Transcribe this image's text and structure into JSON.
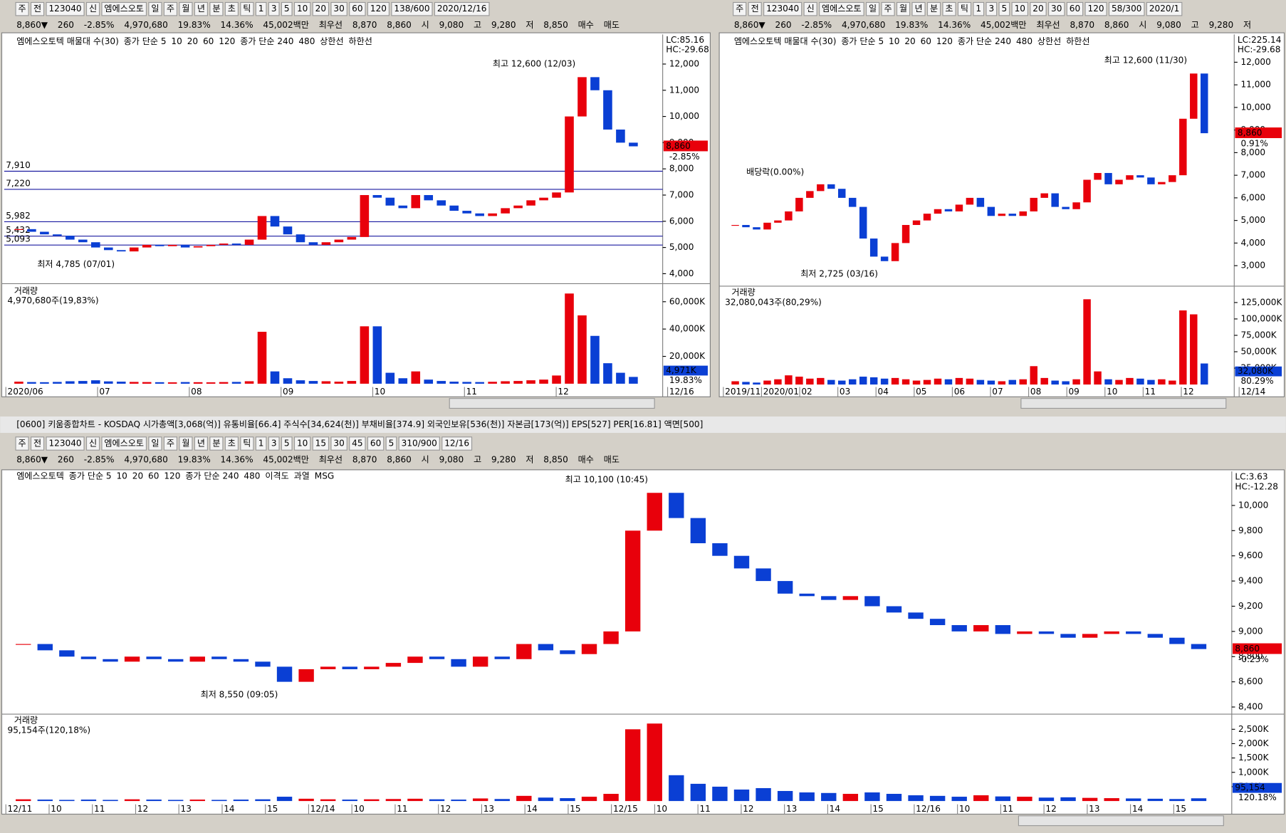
{
  "quote": [
    "8,860▼",
    "260",
    "-2.85%",
    "4,970,680",
    "19.83%",
    "14.36%",
    "45,002백만",
    "최우선",
    "8,870",
    "8,860",
    "시",
    "9,080",
    "고",
    "9,280",
    "저",
    "8,850",
    "매수",
    "매도"
  ],
  "window_title": "[0600] 키움종합차트 - KOSDAQ 시가총액[3,068(억)] 유통비율[66.4] 주식수[34,624(천)] 부채비율[374.9] 외국인보유[536(천)] 자본금[173(억)] EPS[527] PER[16.81] 액면[500]",
  "panels": [
    {
      "toolbar": [
        "주",
        "전",
        "123040",
        "신",
        "엠에스오토",
        "일",
        "주",
        "월",
        "년",
        "분",
        "초",
        "틱",
        "1",
        "3",
        "5",
        "10",
        "20",
        "30",
        "60",
        "120",
        "138/600",
        "2020/12/16"
      ],
      "legend": [
        {
          "label": "엠에스오토텍 매물대 수(30)",
          "color": "#000000"
        },
        {
          "label": "종가 단순 5",
          "color": "#d0208c"
        },
        {
          "label": "10",
          "color": "#1030d0"
        },
        {
          "label": "20",
          "color": "#e0a000"
        },
        {
          "label": "60",
          "color": "#20a020"
        },
        {
          "label": "120",
          "color": "#888888"
        },
        {
          "label": "종가 단순 240",
          "color": "#8b0000"
        },
        {
          "label": "480",
          "color": "#00b0d0"
        },
        {
          "label": "상한선",
          "color": "#000000"
        },
        {
          "label": "하한선",
          "color": "#000000"
        }
      ],
      "ylim": [
        3650,
        13130
      ],
      "yticks": [
        {
          "value": 4000,
          "label": "4,000"
        },
        {
          "value": 5000,
          "label": "5,000"
        },
        {
          "value": 6000,
          "label": "6,000"
        },
        {
          "value": 7000,
          "label": "7,000"
        },
        {
          "value": 8000,
          "label": "8,000"
        },
        {
          "value": 9000,
          "label": "9,000"
        },
        {
          "value": 10000,
          "label": "10,000"
        },
        {
          "value": 11000,
          "label": "11,000"
        },
        {
          "value": 12000,
          "label": "12,000"
        }
      ],
      "levels": [
        {
          "value": 7910,
          "label": "7,910"
        },
        {
          "value": 7220,
          "label": "7,220"
        },
        {
          "value": 5982,
          "label": "5,982"
        },
        {
          "value": 5432,
          "label": "5,432"
        },
        {
          "value": 5093,
          "label": "5,093"
        }
      ],
      "high_label": "최고 12,600 (12/03)",
      "low_label": "최저 4,785 (07/01)",
      "lc": "LC:85.16",
      "hc": "HC:-29.68",
      "price_box": "8,860",
      "change_box": "-2.85%",
      "close": [
        5700,
        5600,
        5500,
        5450,
        5300,
        5200,
        5000,
        4900,
        4850,
        5000,
        5100,
        5050,
        5100,
        5000,
        5050,
        5100,
        5150,
        5100,
        5300,
        6200,
        5800,
        5500,
        5200,
        5100,
        5200,
        5300,
        5400,
        7000,
        6900,
        6600,
        6500,
        7000,
        6800,
        6600,
        6400,
        6300,
        6200,
        6300,
        6500,
        6600,
        6800,
        6900,
        7100,
        10000,
        11500,
        11000,
        9500,
        9000,
        8860
      ],
      "volume_title": "거래량",
      "volume_text": "4,970,680주(19,83%)",
      "vol_box": "4,971K",
      "vol_pct": "19.83%",
      "vlim": [
        0,
        72000
      ],
      "vticks": [
        {
          "value": 20000,
          "label": "20,000K"
        },
        {
          "value": 40000,
          "label": "40,000K"
        },
        {
          "value": 60000,
          "label": "60,000K"
        }
      ],
      "volume": [
        1500,
        1200,
        1100,
        1300,
        1800,
        2000,
        2500,
        1700,
        1500,
        1300,
        1200,
        1100,
        1000,
        1200,
        1100,
        1000,
        1200,
        1300,
        1800,
        38000,
        9000,
        4000,
        2500,
        2000,
        1800,
        1500,
        2000,
        42000,
        42000,
        8000,
        4000,
        9000,
        3000,
        2000,
        1500,
        1300,
        1200,
        1400,
        1800,
        2000,
        2500,
        3000,
        6000,
        66000,
        50000,
        35000,
        15000,
        8000,
        4971
      ],
      "xlabels": [
        "2020/06",
        "07",
        "08",
        "09",
        "10",
        "11",
        "12",
        "12/16"
      ]
    },
    {
      "toolbar": [
        "주",
        "전",
        "123040",
        "신",
        "엠에스오토",
        "일",
        "주",
        "월",
        "년",
        "분",
        "초",
        "틱",
        "1",
        "3",
        "5",
        "10",
        "20",
        "30",
        "60",
        "120",
        "58/300",
        "2020/1"
      ],
      "legend": [
        {
          "label": "엠에스오토텍 매물대 수(30)",
          "color": "#000000"
        },
        {
          "label": "종가 단순 5",
          "color": "#d0208c"
        },
        {
          "label": "10",
          "color": "#1030d0"
        },
        {
          "label": "20",
          "color": "#e0a000"
        },
        {
          "label": "60",
          "color": "#20a020"
        },
        {
          "label": "120",
          "color": "#888888"
        },
        {
          "label": "종가 단순 240",
          "color": "#8b0000"
        },
        {
          "label": "480",
          "color": "#00b0d0"
        },
        {
          "label": "상한선",
          "color": "#000000"
        },
        {
          "label": "하한선",
          "color": "#000000"
        }
      ],
      "ylim": [
        2130,
        13230
      ],
      "yticks": [
        {
          "value": 3000,
          "label": "3,000"
        },
        {
          "value": 4000,
          "label": "4,000"
        },
        {
          "value": 5000,
          "label": "5,000"
        },
        {
          "value": 6000,
          "label": "6,000"
        },
        {
          "value": 7000,
          "label": "7,000"
        },
        {
          "value": 8000,
          "label": "8,000"
        },
        {
          "value": 9000,
          "label": "9,000"
        },
        {
          "value": 10000,
          "label": "10,000"
        },
        {
          "value": 11000,
          "label": "11,000"
        },
        {
          "value": 12000,
          "label": "12,000"
        }
      ],
      "levels": [],
      "high_label": "최고 12,600 (11/30)",
      "low_label": "최저 2,725 (03/16)",
      "dividend_label": "배당락(0.00%)",
      "lc": "LC:225.14",
      "hc": "HC:-29.68",
      "price_box": "8,860",
      "change_box": "0.91%",
      "close": [
        4800,
        4700,
        4600,
        4900,
        5000,
        5400,
        6000,
        6300,
        6600,
        6400,
        6000,
        5600,
        4200,
        3400,
        3200,
        4000,
        4800,
        5000,
        5300,
        5500,
        5400,
        5700,
        6000,
        5600,
        5200,
        5300,
        5200,
        5400,
        6000,
        6200,
        5600,
        5500,
        5800,
        6800,
        7100,
        6600,
        6800,
        7000,
        6900,
        6600,
        6700,
        7000,
        9500,
        11500,
        8860
      ],
      "volume_title": "거래량",
      "volume_text": "32,080,043주(80,29%)",
      "vol_box": "32,080K",
      "vol_pct": "80.29%",
      "vlim": [
        0,
        148750
      ],
      "vticks": [
        {
          "value": 25000,
          "label": "25,000K"
        },
        {
          "value": 50000,
          "label": "50,000K"
        },
        {
          "value": 75000,
          "label": "75,000K"
        },
        {
          "value": 100000,
          "label": "100,000K"
        },
        {
          "value": 125000,
          "label": "125,000K"
        }
      ],
      "volume": [
        5000,
        4000,
        3000,
        6000,
        8000,
        14000,
        12000,
        9000,
        10000,
        7000,
        6000,
        8000,
        12000,
        11000,
        9000,
        10000,
        8000,
        6000,
        7000,
        9000,
        8000,
        10000,
        9000,
        7000,
        6000,
        5000,
        7000,
        8000,
        28000,
        10000,
        6000,
        5000,
        8000,
        130000,
        20000,
        8000,
        7000,
        10000,
        9000,
        7000,
        8000,
        6000,
        113000,
        107000,
        32080
      ],
      "xlabels": [
        "2019/11",
        "2020/01",
        "02",
        "03",
        "04",
        "05",
        "06",
        "07",
        "08",
        "09",
        "10",
        "11",
        "12",
        "12/14"
      ]
    },
    {
      "toolbar": [
        "주",
        "전",
        "123040",
        "신",
        "엠에스오토",
        "일",
        "주",
        "월",
        "년",
        "분",
        "초",
        "틱",
        "1",
        "3",
        "5",
        "10",
        "15",
        "30",
        "45",
        "60",
        "5",
        "310/900",
        "12/16"
      ],
      "legend": [
        {
          "label": "엠에스오토텍",
          "color": "#000000"
        },
        {
          "label": "종가 단순 5",
          "color": "#d0208c"
        },
        {
          "label": "10",
          "color": "#1030d0"
        },
        {
          "label": "20",
          "color": "#e0a000"
        },
        {
          "label": "60",
          "color": "#20a020"
        },
        {
          "label": "120",
          "color": "#000000"
        },
        {
          "label": "종가 단순 240",
          "color": "#8b0000"
        },
        {
          "label": "480",
          "color": "#00b0d0"
        },
        {
          "label": "이격도",
          "color": "#1030d0"
        },
        {
          "label": "과열",
          "color": "#8b0000"
        },
        {
          "label": "MSG",
          "color": "#000000"
        }
      ],
      "ylim": [
        8350,
        10270
      ],
      "yticks": [
        {
          "value": 8400,
          "label": "8,400"
        },
        {
          "value": 8600,
          "label": "8,600"
        },
        {
          "value": 8800,
          "label": "8,800"
        },
        {
          "value": 9000,
          "label": "9,000"
        },
        {
          "value": 9200,
          "label": "9,200"
        },
        {
          "value": 9400,
          "label": "9,400"
        },
        {
          "value": 9600,
          "label": "9,600"
        },
        {
          "value": 9800,
          "label": "9,800"
        },
        {
          "value": 10000,
          "label": "10,000"
        }
      ],
      "levels": [],
      "high_label": "최고 10,100 (10:45)",
      "low_label": "최저 8,550 (09:05)",
      "lc": "LC:3.63",
      "hc": "HC:-12.28",
      "price_box": "8,860",
      "change_box": "-0.23%",
      "close": [
        8900,
        8850,
        8800,
        8780,
        8760,
        8800,
        8780,
        8760,
        8800,
        8780,
        8760,
        8720,
        8600,
        8700,
        8720,
        8700,
        8720,
        8750,
        8800,
        8780,
        8720,
        8800,
        8780,
        8900,
        8850,
        8820,
        8900,
        9000,
        9800,
        10100,
        9900,
        9700,
        9600,
        9500,
        9400,
        9300,
        9280,
        9250,
        9280,
        9200,
        9150,
        9100,
        9050,
        9000,
        9050,
        8980,
        9000,
        8980,
        8950,
        8980,
        9000,
        8980,
        8950,
        8900,
        8860
      ],
      "volume_title": "거래량",
      "volume_text": "95,154주(120,18%)",
      "vol_box": "95,154",
      "vol_pct": "120.18%",
      "vlim": [
        0,
        3000
      ],
      "vticks": [
        {
          "value": 500,
          "label": "500K"
        },
        {
          "value": 1000,
          "label": "1,000K"
        },
        {
          "value": 1500,
          "label": "1,500K"
        },
        {
          "value": 2000,
          "label": "2,000K"
        },
        {
          "value": 2500,
          "label": "2,500K"
        }
      ],
      "volume": [
        60,
        50,
        40,
        50,
        40,
        60,
        50,
        40,
        50,
        40,
        50,
        60,
        150,
        80,
        60,
        50,
        60,
        70,
        80,
        60,
        50,
        90,
        70,
        180,
        120,
        100,
        150,
        250,
        2500,
        2700,
        900,
        600,
        500,
        400,
        450,
        350,
        300,
        280,
        250,
        300,
        250,
        200,
        180,
        150,
        200,
        160,
        150,
        120,
        130,
        110,
        100,
        90,
        80,
        70,
        95
      ],
      "xlabels": [
        "12/11",
        "10",
        "11",
        "12",
        "13",
        "14",
        "15",
        "12/14",
        "10",
        "11",
        "12",
        "13",
        "14",
        "15",
        "12/15",
        "10",
        "11",
        "12",
        "13",
        "14",
        "15",
        "12/16",
        "10",
        "11",
        "12",
        "13",
        "14",
        "15"
      ]
    }
  ]
}
